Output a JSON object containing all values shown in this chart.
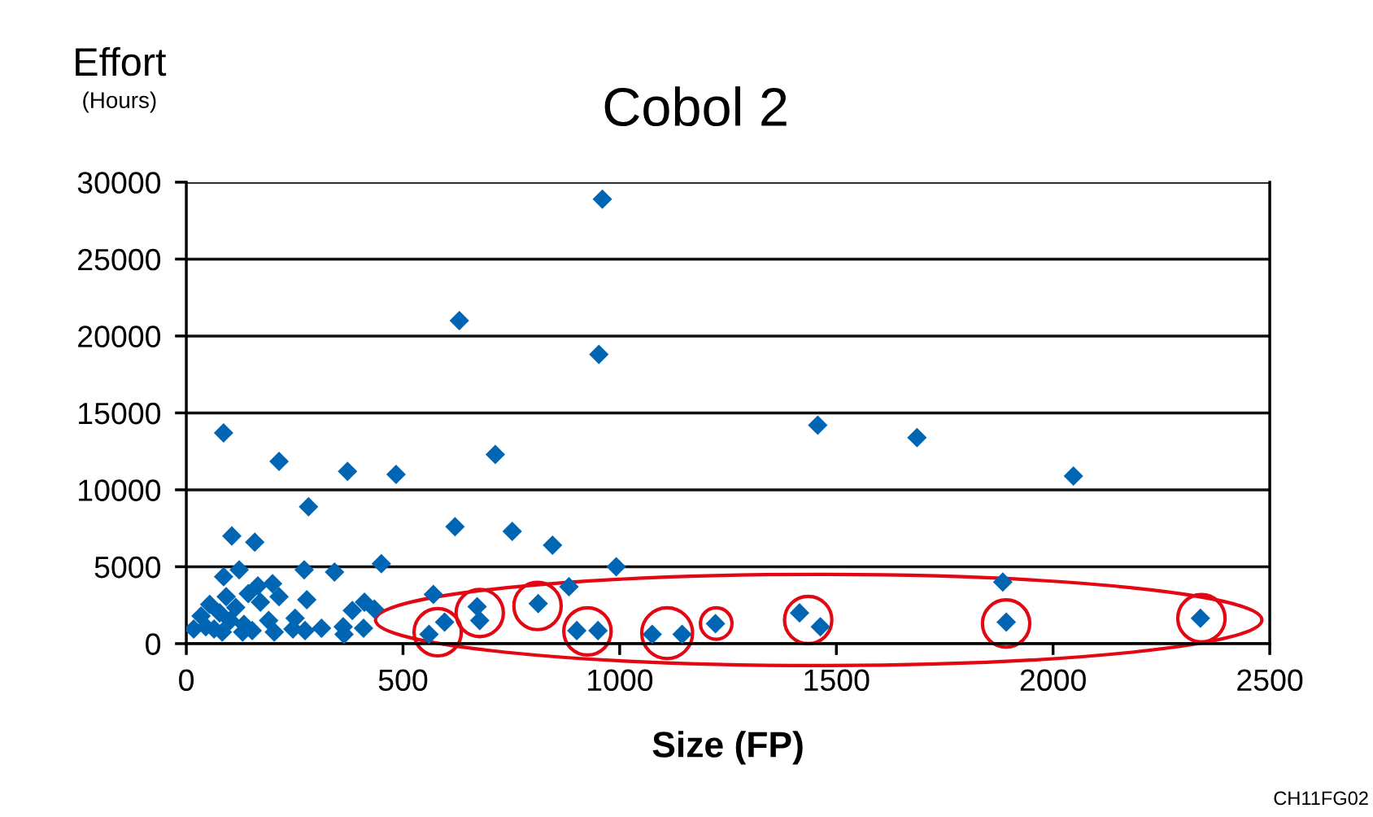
{
  "chart_data": {
    "type": "scatter",
    "title": "Cobol 2",
    "xlabel": "Size (FP)",
    "ylabel": "Effort\n(Hours)",
    "annotations": [
      "CH11FG02"
    ],
    "series": [
      {
        "color": "#0066b3",
        "x": [
          86,
          214,
          372,
          484,
          282,
          105,
          158,
          122,
          86,
          272,
          342,
          450,
          199,
          165,
          143,
          214,
          92,
          54,
          34,
          17,
          64,
          101,
          114,
          133,
          152,
          171,
          190,
          203,
          278,
          251,
          246,
          274,
          312,
          362,
          364,
          383,
          411,
          434,
          409,
          77,
          45,
          83,
          130,
          570,
          630,
          960,
          952,
          713,
          620,
          752,
          845,
          992,
          883,
          1457,
          1686,
          2047,
          1884,
          560,
          596,
          671,
          677,
          812,
          901,
          950,
          1075,
          1144,
          1221,
          1415,
          1463,
          1892,
          2340
        ],
        "values": [
          13700,
          11850,
          11200,
          11000,
          8900,
          7000,
          6600,
          4800,
          4350,
          4800,
          4650,
          5200,
          3900,
          3750,
          3250,
          3050,
          3050,
          2550,
          1800,
          950,
          950,
          1500,
          2350,
          1250,
          850,
          2700,
          1500,
          750,
          2850,
          1650,
          950,
          850,
          1000,
          1100,
          600,
          2150,
          2700,
          2250,
          1000,
          2000,
          1100,
          750,
          750,
          3200,
          21000,
          28900,
          18800,
          12300,
          7600,
          7300,
          6400,
          5000,
          3700,
          14200,
          13400,
          10900,
          4000,
          600,
          1400,
          2400,
          1500,
          2600,
          850,
          850,
          600,
          600,
          1300,
          2000,
          1100,
          1400,
          1650
        ]
      }
    ],
    "marker": "diamond",
    "xlim": [
      0,
      2500
    ],
    "xticks": [
      0,
      500,
      1000,
      1500,
      2000,
      2500
    ],
    "ylim": [
      0,
      30000
    ],
    "yticks": [
      0,
      5000,
      10000,
      15000,
      20000,
      25000,
      30000
    ],
    "grid": "y"
  }
}
